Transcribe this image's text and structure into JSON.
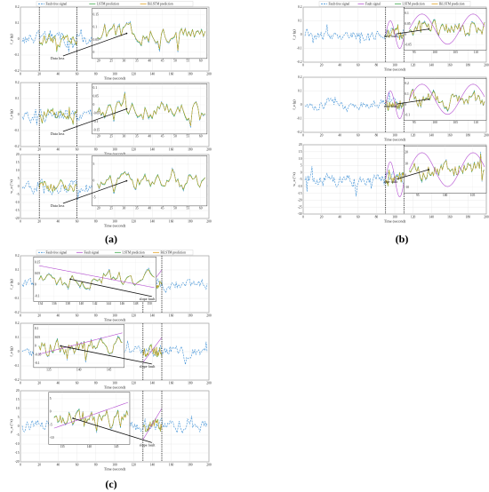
{
  "figure": {
    "panel_labels": [
      "(a)",
      "(b)",
      "(c)"
    ],
    "legend_labels": {
      "fault_free": "Fault-free signal",
      "fault": "Fault signal",
      "lstm": "LSTM prediction",
      "bilstm": "BiLSTM prediction"
    },
    "colors": {
      "fault_free": "#3b8fd6",
      "fault": "#b44fd1",
      "lstm": "#3aa84a",
      "bilstm": "#e0a020",
      "marker": "#111111"
    }
  },
  "chart_data": [
    {
      "id": "a1",
      "group": "(a)",
      "type": "line",
      "ylabel": "f_y (g)",
      "xlabel": "Time (second)",
      "xlim": [
        0,
        200
      ],
      "ylim": [
        -0.2,
        0.2
      ],
      "xticks": [
        "0",
        "20",
        "40",
        "60",
        "80",
        "100",
        "120",
        "140",
        "160",
        "180",
        "200"
      ],
      "yticks": [
        "0.2",
        "0.1",
        "0",
        "-0.1",
        "-0.2"
      ],
      "markers": [
        20,
        60
      ],
      "fault_type": "data loss",
      "annotation": "Data loss",
      "legend": [
        "Fault-free signal",
        "LSTM prediction",
        "BiLSTM prediction"
      ],
      "inset_xticks": [
        "20",
        "25",
        "30",
        "35",
        "40",
        "45",
        "50",
        "55",
        "60"
      ],
      "inset_yticks": [
        "0.15",
        "0.1",
        "0.05",
        "0"
      ]
    },
    {
      "id": "a2",
      "group": "(a)",
      "type": "line",
      "ylabel": "f_z (g)",
      "xlabel": "Time (second)",
      "xlim": [
        0,
        200
      ],
      "ylim": [
        -0.2,
        0.2
      ],
      "xticks": [
        "0",
        "20",
        "40",
        "60",
        "80",
        "100",
        "120",
        "140",
        "160",
        "180",
        "200"
      ],
      "yticks": [
        "0.2",
        "0.1",
        "0",
        "-0.1",
        "-0.2"
      ],
      "markers": [
        20,
        60
      ],
      "fault_type": "data loss",
      "annotation": "Data loss",
      "inset_xticks": [
        "20",
        "25",
        "30",
        "35",
        "40",
        "45",
        "50",
        "55",
        "60"
      ],
      "inset_yticks": [
        "0.1",
        "0.05",
        "0",
        "-0.05",
        "-0.1",
        "-0.15"
      ]
    },
    {
      "id": "a3",
      "group": "(a)",
      "type": "line",
      "ylabel": "w_x (°/s)",
      "xlabel": "Time (second)",
      "xlim": [
        0,
        200
      ],
      "ylim": [
        -20,
        20
      ],
      "xticks": [
        "0",
        "20",
        "40",
        "60",
        "80",
        "100",
        "120",
        "140",
        "160",
        "180",
        "200"
      ],
      "yticks": [
        "20",
        "15",
        "10",
        "5",
        "0",
        "-5",
        "-10",
        "-15",
        "-20"
      ],
      "markers": [
        20,
        60
      ],
      "fault_type": "data loss",
      "annotation": "Data loss",
      "inset_xticks": [
        "20",
        "25",
        "30",
        "35",
        "40",
        "45",
        "50",
        "55",
        "60"
      ],
      "inset_yticks": [
        "5",
        "0",
        "-5"
      ]
    },
    {
      "id": "b1",
      "group": "(b)",
      "type": "line",
      "ylabel": "f_y (g)",
      "xlabel": "Time (second)",
      "xlim": [
        0,
        200
      ],
      "ylim": [
        -0.2,
        0.2
      ],
      "xticks": [
        "0",
        "20",
        "40",
        "60",
        "80",
        "100",
        "120",
        "140",
        "160",
        "180",
        "200"
      ],
      "yticks": [
        "0.2",
        "0.1",
        "0",
        "-0.1",
        "-0.2"
      ],
      "markers": [
        90,
        110
      ],
      "fault_type": "sine fault",
      "annotation": "sine fault",
      "legend": [
        "Fault-free signal",
        "Fault signal",
        "LSTM prediction",
        "BiLSTM prediction"
      ],
      "inset_xticks": [
        "95",
        "100",
        "105",
        "110"
      ],
      "inset_yticks": [
        "0.1",
        "0.05",
        "0",
        "-0.05"
      ]
    },
    {
      "id": "b2",
      "group": "(b)",
      "type": "line",
      "ylabel": "f_z (g)",
      "xlabel": "Time (second)",
      "xlim": [
        0,
        200
      ],
      "ylim": [
        -0.2,
        0.2
      ],
      "xticks": [
        "0",
        "20",
        "40",
        "60",
        "80",
        "100",
        "120",
        "140",
        "160",
        "180",
        "200"
      ],
      "yticks": [
        "0.2",
        "0.1",
        "0",
        "-0.1",
        "-0.2"
      ],
      "markers": [
        90,
        110
      ],
      "fault_type": "sine fault",
      "annotation": "sine fault",
      "inset_xticks": [
        "95",
        "100",
        "105",
        "110"
      ],
      "inset_yticks": [
        "0.2",
        "0.1",
        "0",
        "-0.1"
      ]
    },
    {
      "id": "b3",
      "group": "(b)",
      "type": "line",
      "ylabel": "w_x (°/s)",
      "xlabel": "Time (second)",
      "xlim": [
        0,
        200
      ],
      "ylim": [
        -30,
        20
      ],
      "xticks": [
        "0",
        "20",
        "40",
        "60",
        "80",
        "100",
        "120",
        "140",
        "160",
        "180",
        "200"
      ],
      "yticks": [
        "20",
        "15",
        "10",
        "5",
        "0",
        "-5",
        "-10",
        "-15",
        "-20",
        "-25",
        "-30"
      ],
      "markers": [
        90,
        110
      ],
      "fault_type": "sine fault",
      "annotation": "sine fault",
      "inset_xticks": [
        "95",
        "100",
        "105"
      ],
      "inset_yticks": [
        "20",
        "10",
        "0",
        "-10"
      ]
    },
    {
      "id": "c1",
      "group": "(c)",
      "type": "line",
      "ylabel": "f_y (g)",
      "xlabel": "Time (second)",
      "xlim": [
        0,
        200
      ],
      "ylim": [
        -0.2,
        0.2
      ],
      "xticks": [
        "0",
        "20",
        "40",
        "60",
        "80",
        "100",
        "120",
        "140",
        "160",
        "180",
        "200"
      ],
      "yticks": [
        "0.2",
        "0.1",
        "0",
        "-0.1",
        "-0.2"
      ],
      "markers": [
        130,
        150
      ],
      "fault_type": "slope fault",
      "annotation": "slope fault",
      "legend": [
        "Fault-free signal",
        "Fault signal",
        "LSTM prediction",
        "BiLSTM prediction"
      ],
      "inset_xticks": [
        "134",
        "136",
        "138",
        "140",
        "142",
        "144",
        "146",
        "148",
        "150"
      ],
      "inset_yticks": [
        "0.15",
        "0.05",
        "0",
        "-0.1"
      ]
    },
    {
      "id": "c2",
      "group": "(c)",
      "type": "line",
      "ylabel": "f_z (g)",
      "xlabel": "Time (second)",
      "xlim": [
        0,
        200
      ],
      "ylim": [
        -0.2,
        0.2
      ],
      "xticks": [
        "0",
        "20",
        "40",
        "60",
        "80",
        "100",
        "120",
        "140",
        "160",
        "180",
        "200"
      ],
      "yticks": [
        "0.2",
        "0.1",
        "0",
        "-0.1",
        "-0.2"
      ],
      "markers": [
        130,
        150
      ],
      "fault_type": "slope fault",
      "annotation": "slope fault",
      "inset_xticks": [
        "135",
        "140",
        "145"
      ],
      "inset_yticks": [
        "0.1",
        "0.05",
        "0",
        "-0.05",
        "-0.1"
      ]
    },
    {
      "id": "c3",
      "group": "(c)",
      "type": "line",
      "ylabel": "w_x (°/s)",
      "xlabel": "Time (second)",
      "xlim": [
        0,
        200
      ],
      "ylim": [
        -20,
        20
      ],
      "xticks": [
        "0",
        "20",
        "40",
        "60",
        "80",
        "100",
        "120",
        "140",
        "160",
        "180",
        "200"
      ],
      "yticks": [
        "20",
        "15",
        "10",
        "5",
        "0",
        "-5",
        "-10",
        "-15",
        "-20"
      ],
      "markers": [
        130,
        150
      ],
      "fault_type": "slope fault",
      "annotation": "slope fault",
      "inset_xticks": [
        "135",
        "140",
        "145"
      ],
      "inset_yticks": [
        "5",
        "0",
        "-5",
        "-10"
      ]
    }
  ]
}
